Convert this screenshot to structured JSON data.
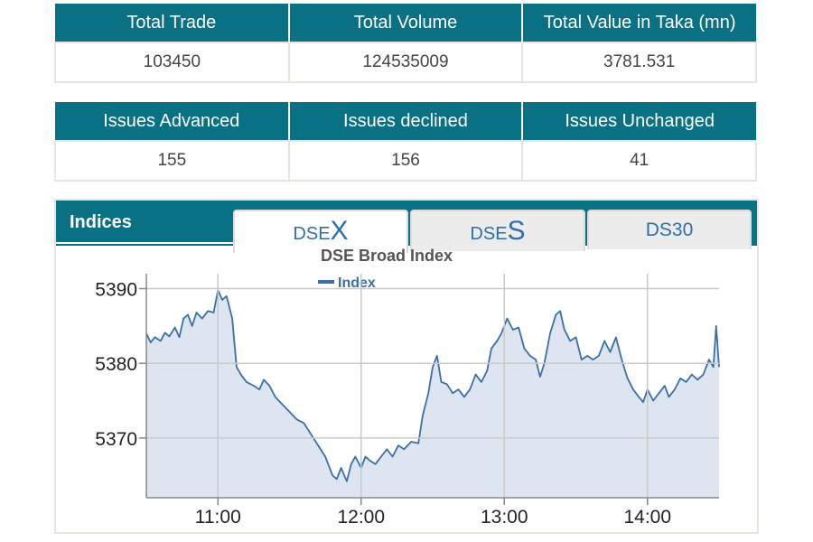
{
  "market_stats": {
    "headers": [
      "Total Trade",
      "Total Volume",
      "Total Value in Taka (mn)"
    ],
    "values": [
      "103450",
      "124535009",
      "3781.531"
    ]
  },
  "issues": {
    "headers": [
      "Issues Advanced",
      "Issues declined",
      "Issues Unchanged"
    ],
    "values": [
      "155",
      "156",
      "41"
    ]
  },
  "indices": {
    "title": "Indices",
    "tabs": [
      {
        "prefix": "DSE",
        "suffix": "X"
      },
      {
        "prefix": "DSE",
        "suffix": "S"
      },
      {
        "label": "DS30"
      }
    ]
  },
  "chart_data": {
    "type": "area",
    "title": "DSE Broad Index",
    "legend": [
      "Index"
    ],
    "x_ticks": [
      "11:00",
      "12:00",
      "13:00",
      "14:00"
    ],
    "y_ticks": [
      "5370",
      "5380",
      "5390"
    ],
    "xlim": [
      10.5,
      14.5
    ],
    "ylim": [
      5362,
      5392
    ],
    "series": [
      {
        "name": "Index",
        "color": "#3a6fa8",
        "fill": "#dde6f0",
        "points": [
          [
            10.5,
            5384.0
          ],
          [
            10.53,
            5382.8
          ],
          [
            10.56,
            5383.5
          ],
          [
            10.6,
            5383.0
          ],
          [
            10.63,
            5384.1
          ],
          [
            10.66,
            5383.6
          ],
          [
            10.7,
            5384.8
          ],
          [
            10.73,
            5383.5
          ],
          [
            10.76,
            5386.0
          ],
          [
            10.79,
            5386.5
          ],
          [
            10.82,
            5385.0
          ],
          [
            10.85,
            5386.8
          ],
          [
            10.89,
            5386.0
          ],
          [
            10.93,
            5387.0
          ],
          [
            10.97,
            5386.8
          ],
          [
            11.0,
            5389.8
          ],
          [
            11.03,
            5388.5
          ],
          [
            11.06,
            5389.0
          ],
          [
            11.1,
            5386.0
          ],
          [
            11.13,
            5379.5
          ],
          [
            11.16,
            5378.5
          ],
          [
            11.2,
            5377.5
          ],
          [
            11.25,
            5377.0
          ],
          [
            11.29,
            5376.5
          ],
          [
            11.32,
            5377.8
          ],
          [
            11.36,
            5377.0
          ],
          [
            11.4,
            5375.5
          ],
          [
            11.45,
            5374.5
          ],
          [
            11.5,
            5373.5
          ],
          [
            11.55,
            5372.5
          ],
          [
            11.6,
            5372.0
          ],
          [
            11.65,
            5370.5
          ],
          [
            11.7,
            5369.0
          ],
          [
            11.75,
            5367.5
          ],
          [
            11.8,
            5365.0
          ],
          [
            11.83,
            5364.5
          ],
          [
            11.86,
            5366.0
          ],
          [
            11.9,
            5364.2
          ],
          [
            11.93,
            5366.5
          ],
          [
            11.96,
            5367.5
          ],
          [
            12.0,
            5366.0
          ],
          [
            12.03,
            5367.5
          ],
          [
            12.06,
            5367.0
          ],
          [
            12.1,
            5366.5
          ],
          [
            12.14,
            5367.5
          ],
          [
            12.18,
            5368.5
          ],
          [
            12.22,
            5367.5
          ],
          [
            12.26,
            5369.0
          ],
          [
            12.3,
            5368.5
          ],
          [
            12.35,
            5369.5
          ],
          [
            12.4,
            5369.3
          ],
          [
            12.43,
            5373.0
          ],
          [
            12.47,
            5376.0
          ],
          [
            12.5,
            5379.5
          ],
          [
            12.53,
            5381.0
          ],
          [
            12.56,
            5377.5
          ],
          [
            12.6,
            5377.2
          ],
          [
            12.64,
            5376.0
          ],
          [
            12.68,
            5376.5
          ],
          [
            12.72,
            5375.5
          ],
          [
            12.76,
            5376.5
          ],
          [
            12.8,
            5378.5
          ],
          [
            12.84,
            5377.5
          ],
          [
            12.88,
            5379.0
          ],
          [
            12.91,
            5382.0
          ],
          [
            12.95,
            5383.0
          ],
          [
            12.98,
            5384.0
          ],
          [
            13.02,
            5386.0
          ],
          [
            13.06,
            5384.5
          ],
          [
            13.1,
            5384.8
          ],
          [
            13.14,
            5382.0
          ],
          [
            13.18,
            5381.0
          ],
          [
            13.22,
            5380.5
          ],
          [
            13.25,
            5378.2
          ],
          [
            13.28,
            5380.0
          ],
          [
            13.32,
            5384.0
          ],
          [
            13.36,
            5386.5
          ],
          [
            13.39,
            5387.0
          ],
          [
            13.42,
            5384.5
          ],
          [
            13.46,
            5383.0
          ],
          [
            13.5,
            5383.5
          ],
          [
            13.54,
            5380.5
          ],
          [
            13.58,
            5381.0
          ],
          [
            13.62,
            5380.5
          ],
          [
            13.66,
            5381.0
          ],
          [
            13.7,
            5383.0
          ],
          [
            13.74,
            5381.5
          ],
          [
            13.78,
            5383.5
          ],
          [
            13.82,
            5380.5
          ],
          [
            13.86,
            5378.0
          ],
          [
            13.9,
            5376.5
          ],
          [
            13.94,
            5375.5
          ],
          [
            13.97,
            5374.8
          ],
          [
            14.0,
            5376.5
          ],
          [
            14.04,
            5375.0
          ],
          [
            14.08,
            5376.0
          ],
          [
            14.12,
            5377.0
          ],
          [
            14.15,
            5375.5
          ],
          [
            14.19,
            5376.5
          ],
          [
            14.23,
            5378.0
          ],
          [
            14.27,
            5377.5
          ],
          [
            14.31,
            5378.5
          ],
          [
            14.35,
            5377.8
          ],
          [
            14.39,
            5378.5
          ],
          [
            14.43,
            5380.5
          ],
          [
            14.46,
            5379.5
          ],
          [
            14.48,
            5385.0
          ],
          [
            14.5,
            5379.5
          ]
        ]
      }
    ]
  }
}
